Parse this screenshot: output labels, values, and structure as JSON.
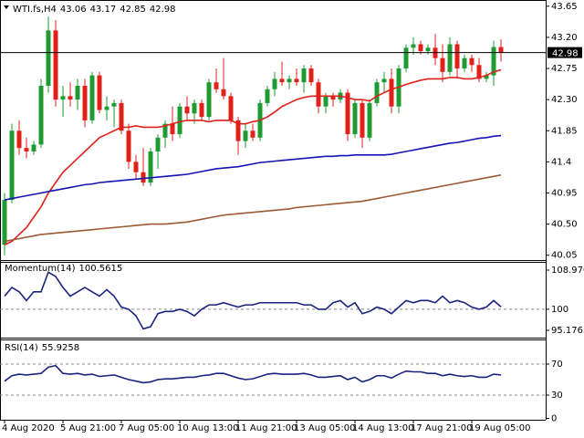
{
  "chart_data": [
    {
      "type": "candlestick",
      "title": "WTI.fs,H4",
      "categories": [
        "4 Aug 2020",
        null,
        null,
        null,
        null,
        null,
        null,
        null,
        "5 Aug 21:00",
        null,
        null,
        null,
        null,
        null,
        null,
        null,
        "7 Aug 05:00",
        null,
        null,
        null,
        null,
        null,
        null,
        null,
        "10 Aug 13:00",
        null,
        null,
        null,
        null,
        null,
        null,
        null,
        "11 Aug 21:00",
        null,
        null,
        null,
        null,
        null,
        null,
        null,
        "13 Aug 05:00",
        null,
        null,
        null,
        null,
        null,
        null,
        null,
        "14 Aug 13:00",
        null,
        null,
        null,
        null,
        null,
        null,
        null,
        "17 Aug 21:00",
        null,
        null,
        null,
        null,
        null,
        null,
        null,
        "19 Aug 05:00",
        null,
        null,
        null,
        null
      ],
      "open": [
        40.2,
        40.85,
        41.85,
        41.6,
        41.55,
        41.65,
        42.5,
        43.3,
        42.3,
        42.35,
        42.3,
        42.5,
        42.0,
        42.65,
        42.15,
        42.2,
        42.25,
        41.85,
        41.4,
        41.25,
        41.1,
        41.55,
        41.75,
        41.95,
        41.8,
        42.2,
        42.1,
        42.25,
        42.05,
        42.55,
        42.45,
        42.35,
        42.0,
        41.7,
        41.85,
        41.75,
        42.25,
        42.45,
        42.6,
        42.55,
        42.6,
        42.55,
        42.75,
        42.55,
        42.2,
        42.35,
        42.3,
        42.4,
        41.8,
        42.25,
        41.75,
        42.25,
        42.55,
        42.6,
        42.2,
        42.75,
        43.05,
        43.1,
        43.0,
        43.05,
        42.9,
        42.7,
        43.1,
        42.75,
        42.9,
        42.8,
        42.6,
        42.65,
        43.06
      ],
      "high": [
        40.95,
        41.95,
        42.0,
        41.75,
        41.7,
        42.6,
        43.5,
        43.45,
        42.5,
        42.55,
        42.6,
        42.6,
        42.7,
        42.7,
        42.35,
        42.3,
        42.3,
        41.95,
        41.5,
        41.6,
        41.6,
        41.8,
        42.0,
        42.2,
        42.25,
        42.35,
        42.3,
        42.3,
        42.6,
        42.75,
        42.9,
        42.4,
        42.05,
        41.95,
        41.95,
        42.3,
        42.5,
        42.7,
        42.85,
        42.65,
        42.75,
        42.8,
        42.8,
        42.6,
        42.4,
        42.4,
        42.45,
        42.45,
        42.3,
        42.3,
        42.3,
        42.6,
        42.7,
        42.75,
        42.8,
        43.1,
        43.2,
        43.15,
        43.1,
        43.25,
        43.1,
        43.2,
        43.15,
        42.95,
        42.95,
        42.9,
        42.7,
        43.15,
        43.17
      ],
      "low": [
        40.05,
        40.8,
        41.5,
        41.45,
        41.5,
        41.6,
        42.4,
        42.2,
        42.05,
        42.2,
        42.15,
        41.9,
        41.95,
        42.1,
        42.0,
        41.9,
        41.8,
        41.3,
        41.15,
        41.05,
        41.05,
        41.3,
        41.6,
        41.7,
        41.75,
        42.0,
        41.95,
        42.0,
        42.0,
        42.4,
        42.3,
        41.95,
        41.5,
        41.6,
        41.7,
        41.7,
        42.2,
        42.35,
        42.5,
        42.45,
        42.5,
        42.4,
        42.5,
        42.1,
        42.1,
        42.2,
        42.25,
        41.7,
        41.75,
        41.6,
        41.7,
        42.2,
        42.4,
        42.1,
        42.1,
        42.7,
        42.95,
        42.95,
        42.95,
        42.8,
        42.55,
        42.65,
        42.6,
        42.7,
        42.7,
        42.55,
        42.55,
        42.5,
        42.85
      ],
      "close": [
        40.85,
        41.85,
        41.6,
        41.55,
        41.65,
        42.5,
        43.3,
        42.3,
        42.35,
        42.3,
        42.5,
        42.0,
        42.65,
        42.15,
        42.2,
        42.25,
        41.85,
        41.4,
        41.25,
        41.1,
        41.55,
        41.75,
        41.95,
        41.8,
        42.2,
        42.1,
        42.25,
        42.05,
        42.55,
        42.45,
        42.35,
        42.0,
        41.7,
        41.85,
        41.75,
        42.25,
        42.45,
        42.6,
        42.55,
        42.6,
        42.55,
        42.75,
        42.55,
        42.2,
        42.35,
        42.3,
        42.4,
        41.8,
        42.25,
        41.75,
        42.25,
        42.55,
        42.6,
        42.2,
        42.75,
        43.05,
        43.1,
        43.0,
        43.05,
        42.9,
        42.7,
        43.1,
        42.75,
        42.9,
        42.8,
        42.6,
        42.65,
        43.06,
        42.98
      ],
      "up_color": "#1e9b32",
      "down_color": "#e0201b",
      "series": [
        {
          "color": "#e0201b",
          "values": [
            40.2,
            40.25,
            40.35,
            40.45,
            40.6,
            40.75,
            40.95,
            41.1,
            41.25,
            41.35,
            41.45,
            41.55,
            41.65,
            41.75,
            41.8,
            41.85,
            41.9,
            41.9,
            41.92,
            41.9,
            41.9,
            41.9,
            41.92,
            41.95,
            41.98,
            42.0,
            42.0,
            42.0,
            41.98,
            42.0,
            42.0,
            42.0,
            41.95,
            41.95,
            41.98,
            42.0,
            42.05,
            42.12,
            42.2,
            42.25,
            42.3,
            42.33,
            42.35,
            42.35,
            42.35,
            42.35,
            42.35,
            42.33,
            42.3,
            42.3,
            42.28,
            42.35,
            42.4,
            42.45,
            42.48,
            42.52,
            42.55,
            42.58,
            42.6,
            42.6,
            42.6,
            42.62,
            42.62,
            42.6,
            42.6,
            42.62,
            42.65,
            42.7,
            42.73
          ]
        },
        {
          "color": "#1414b4",
          "values": [
            40.85,
            40.87,
            40.89,
            40.91,
            40.93,
            40.95,
            40.97,
            40.99,
            41.01,
            41.03,
            41.05,
            41.07,
            41.08,
            41.1,
            41.11,
            41.12,
            41.13,
            41.14,
            41.15,
            41.16,
            41.17,
            41.18,
            41.19,
            41.2,
            41.21,
            41.22,
            41.24,
            41.26,
            41.28,
            41.3,
            41.31,
            41.32,
            41.33,
            41.35,
            41.37,
            41.39,
            41.4,
            41.41,
            41.42,
            41.43,
            41.44,
            41.45,
            41.46,
            41.47,
            41.48,
            41.48,
            41.49,
            41.49,
            41.5,
            41.5,
            41.5,
            41.5,
            41.5,
            41.51,
            41.53,
            41.55,
            41.57,
            41.59,
            41.61,
            41.63,
            41.65,
            41.67,
            41.68,
            41.7,
            41.72,
            41.74,
            41.75,
            41.77,
            41.78
          ]
        },
        {
          "color": "#9c5a32",
          "values": [
            40.25,
            40.27,
            40.29,
            40.31,
            40.33,
            40.35,
            40.36,
            40.37,
            40.38,
            40.39,
            40.4,
            40.41,
            40.42,
            40.43,
            40.44,
            40.45,
            40.46,
            40.47,
            40.48,
            40.49,
            40.5,
            40.5,
            40.5,
            40.51,
            40.52,
            40.53,
            40.55,
            40.57,
            40.59,
            40.61,
            40.63,
            40.64,
            40.65,
            40.66,
            40.67,
            40.68,
            40.69,
            40.7,
            40.71,
            40.72,
            40.74,
            40.75,
            40.76,
            40.77,
            40.78,
            40.79,
            40.8,
            40.81,
            40.82,
            40.83,
            40.85,
            40.87,
            40.89,
            40.91,
            40.93,
            40.95,
            40.97,
            40.99,
            41.01,
            41.03,
            41.05,
            41.07,
            41.09,
            41.11,
            41.13,
            41.15,
            41.17,
            41.19,
            41.21
          ]
        }
      ],
      "ylim": [
        39.98,
        43.74
      ],
      "yticks": [
        43.65,
        {
          "value": 43.2,
          "label": "43.20"
        },
        42.75,
        {
          "value": 42.3,
          "label": "42.30"
        },
        41.85,
        41.4,
        40.95,
        {
          "value": 40.5,
          "label": "40.50"
        },
        40.05
      ]
    },
    {
      "type": "line",
      "title": "Momentum(14)",
      "series": [
        {
          "color": "#1a237e",
          "values": [
            103,
            105,
            104,
            102,
            104,
            104,
            108.5,
            107.5,
            105,
            103,
            104,
            105,
            104,
            103,
            104.5,
            103,
            100.5,
            100,
            98.5,
            95.5,
            96,
            99,
            99.5,
            99.5,
            100,
            99.5,
            98.5,
            100,
            101,
            101,
            101.5,
            101,
            100.5,
            101,
            101,
            101.5,
            101.5,
            101.5,
            101.5,
            101.5,
            101.5,
            101,
            101,
            100,
            100,
            101.5,
            102,
            100.5,
            101.5,
            99,
            99.5,
            100.5,
            100,
            99,
            100.5,
            102,
            101.5,
            102,
            102,
            101.5,
            103,
            101.5,
            102,
            101.5,
            100.5,
            100,
            100.5,
            102,
            100.5615
          ]
        }
      ],
      "ylim": [
        95.1765,
        108.9707
      ],
      "yticks": [
        95.1765,
        100,
        108.9707
      ]
    },
    {
      "type": "line",
      "title": "RSI(14)",
      "series": [
        {
          "color": "#1a237e",
          "values": [
            48,
            55,
            57,
            56,
            57,
            58,
            66,
            68,
            58,
            57,
            58,
            56,
            57,
            54,
            55,
            56,
            53,
            50,
            48,
            46,
            47,
            50,
            51,
            51,
            52,
            53,
            53,
            55,
            56,
            58,
            58,
            55,
            52,
            50,
            51,
            54,
            57,
            58,
            57,
            57,
            57,
            58,
            56,
            53,
            53,
            54,
            55,
            50,
            53,
            47,
            50,
            55,
            55,
            52,
            57,
            61,
            60,
            60,
            58,
            58,
            55,
            57,
            55,
            54,
            55,
            53,
            53,
            57,
            55.9258
          ]
        }
      ],
      "ylim": [
        0,
        100
      ],
      "yticks": [
        0,
        30,
        70
      ]
    }
  ]
}
